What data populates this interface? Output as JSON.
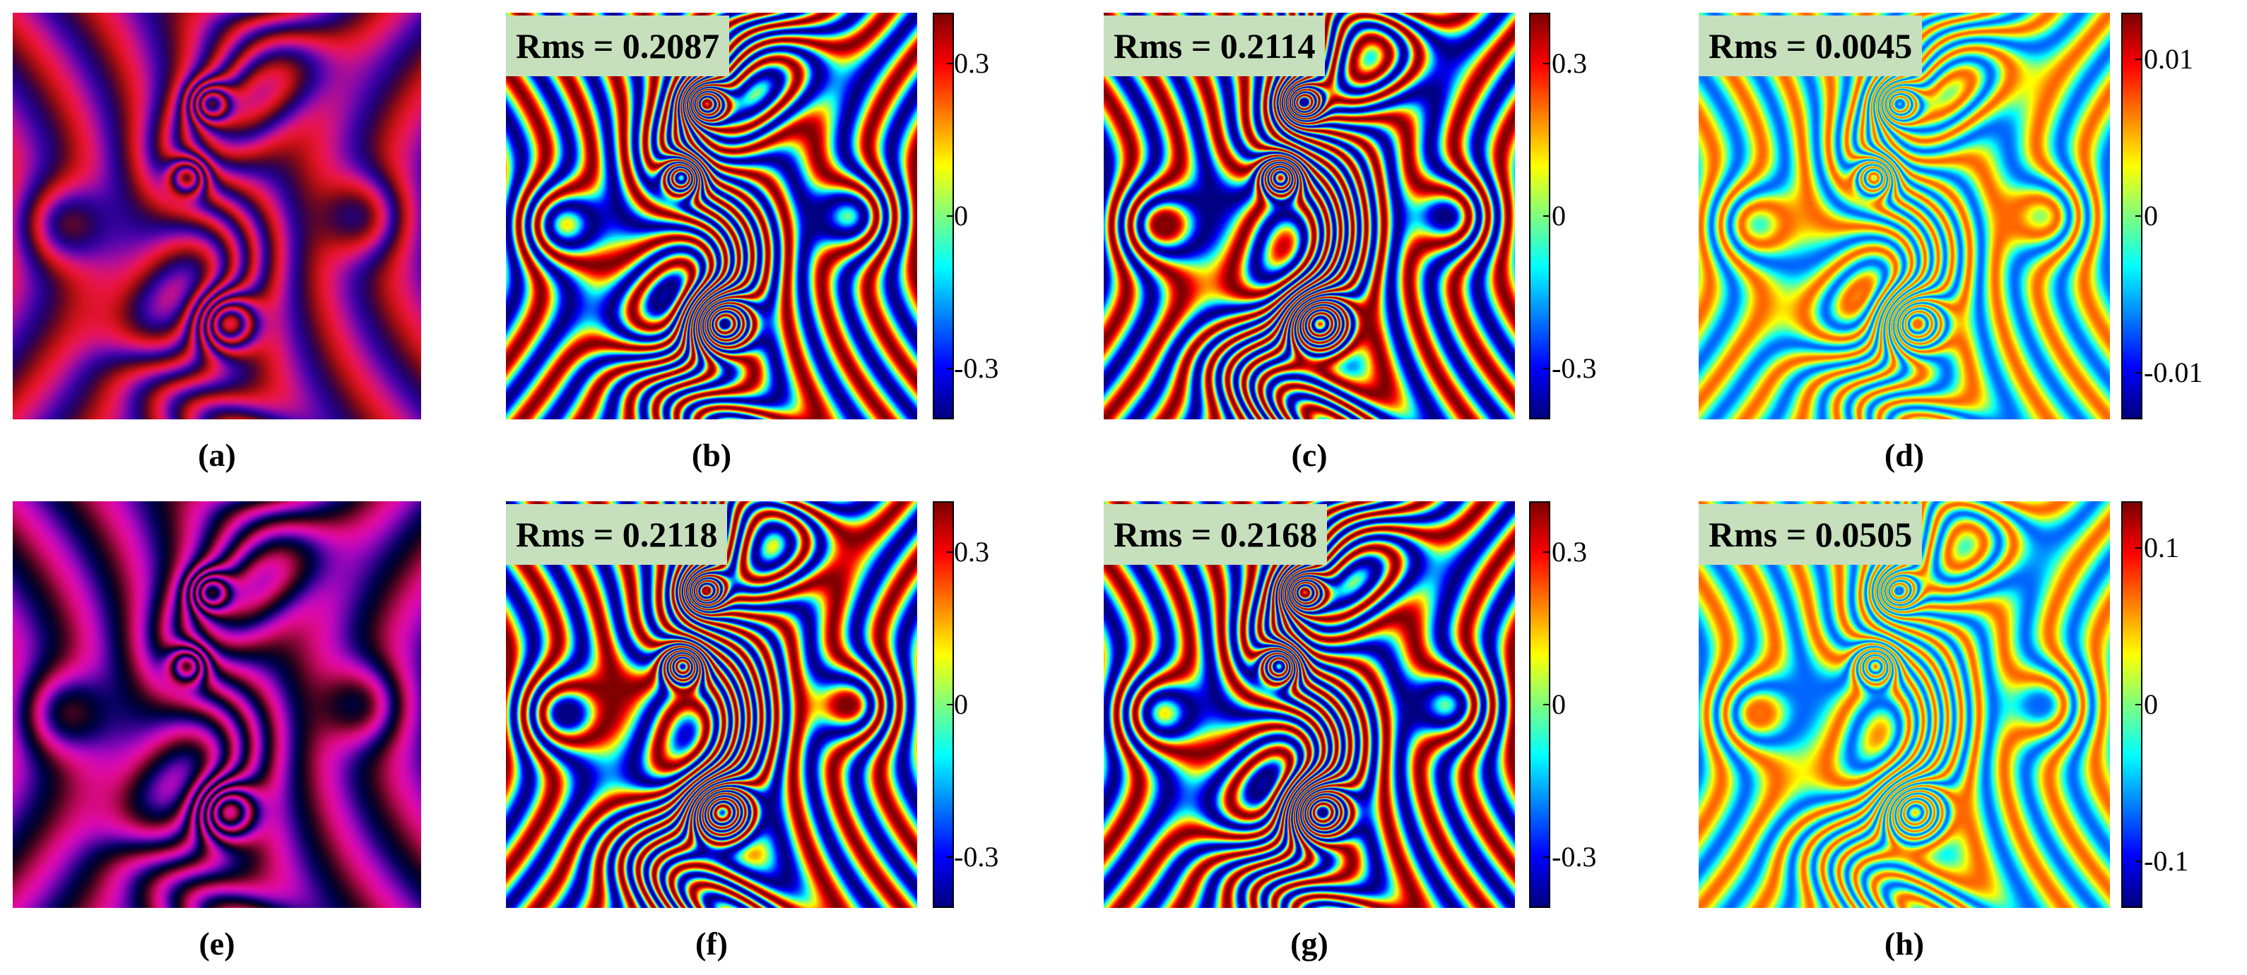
{
  "rows": [
    {
      "intensity": {
        "caption": "(a)",
        "palette": "red"
      },
      "phases": [
        {
          "caption": "(b)",
          "rms": "Rms = 0.2087",
          "ticks": [
            "0.3",
            "0",
            "-0.3"
          ],
          "cmap_range": [
            -0.4,
            0.4
          ]
        },
        {
          "caption": "(c)",
          "rms": "Rms = 0.2114",
          "ticks": [
            "0.3",
            "0",
            "-0.3"
          ],
          "cmap_range": [
            -0.4,
            0.4
          ]
        },
        {
          "caption": "(d)",
          "rms": "Rms = 0.0045",
          "ticks": [
            "0.01",
            "0",
            "-0.01"
          ],
          "cmap_range": [
            -0.013,
            0.013
          ]
        }
      ]
    },
    {
      "intensity": {
        "caption": "(e)",
        "palette": "magenta"
      },
      "phases": [
        {
          "caption": "(f)",
          "rms": "Rms = 0.2118",
          "ticks": [
            "0.3",
            "0",
            "-0.3"
          ],
          "cmap_range": [
            -0.4,
            0.4
          ]
        },
        {
          "caption": "(g)",
          "rms": "Rms = 0.2168",
          "ticks": [
            "0.3",
            "0",
            "-0.3"
          ],
          "cmap_range": [
            -0.4,
            0.4
          ]
        },
        {
          "caption": "(h)",
          "rms": "Rms = 0.0505",
          "ticks": [
            "0.1",
            "0",
            "-0.1"
          ],
          "cmap_range": [
            -0.13,
            0.13
          ]
        }
      ]
    }
  ],
  "colormap": "jet"
}
